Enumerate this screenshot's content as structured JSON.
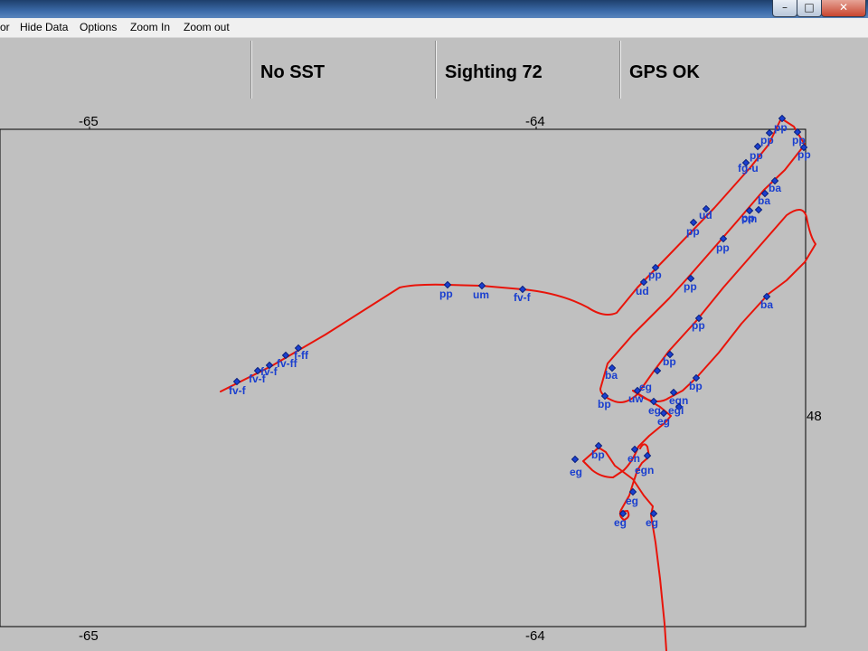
{
  "window": {
    "controls": {
      "minimize": "–",
      "maximize": "□",
      "close": "✕"
    }
  },
  "menu": {
    "items": [
      "or",
      "Hide Data",
      "Options",
      "Zoom In",
      "Zoom out"
    ]
  },
  "status": {
    "sst": "No SST",
    "sighting": "Sighting 72",
    "gps": "GPS OK"
  },
  "map": {
    "lon_ticks": [
      "-65",
      "-64"
    ],
    "lat_ticks": [
      "48"
    ],
    "track_color": "#e8140a",
    "waypoint_color": "#1a3fcf",
    "waypoint_labels": [
      "pp",
      "pp",
      "pp",
      "pp",
      "pp",
      "fg-u",
      "ba",
      "ba",
      "pp",
      "ud",
      "cm",
      "pp",
      "pp",
      "pp",
      "pp",
      "ud",
      "pp",
      "ba",
      "ba",
      "bp",
      "bp",
      "bp",
      "eg",
      "uw",
      "egn",
      "eg",
      "egl",
      "eg",
      "bp",
      "eg",
      "en",
      "egn",
      "eg",
      "eg",
      "eg",
      "pp",
      "um",
      "fv-f",
      "fv-f",
      "fv-f",
      "fv-f",
      "fv-ff",
      "f-ff"
    ]
  }
}
